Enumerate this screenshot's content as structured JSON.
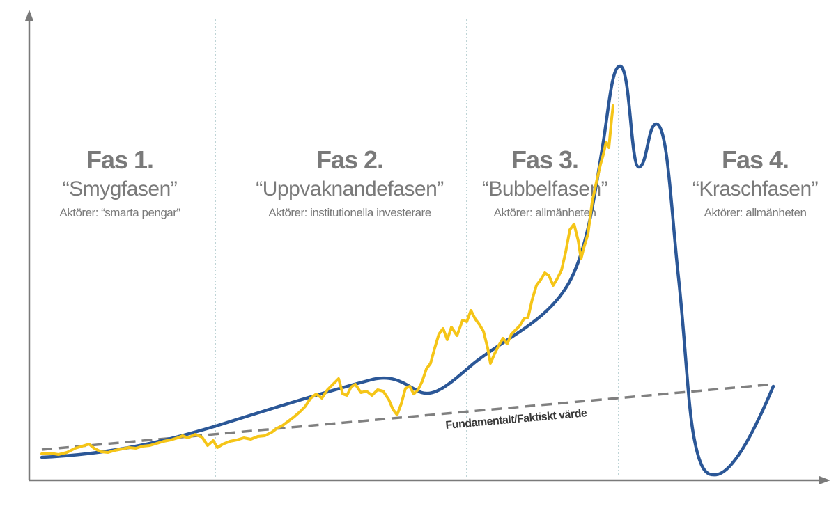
{
  "phases": [
    {
      "title": "Fas 1.",
      "name": "“Smygfasen”",
      "actors": "Aktörer: “smarta pengar”"
    },
    {
      "title": "Fas 2.",
      "name": "“Uppvaknandefasen”",
      "actors": "Aktörer: institutionella investerare"
    },
    {
      "title": "Fas 3.",
      "name": "“Bubbelfasen”",
      "actors": "Aktörer: allmänheten"
    },
    {
      "title": "Fas 4.",
      "name": "“Kraschfasen”",
      "actors": "Aktörer: allmänheten"
    }
  ],
  "fundamental_label": "Fundamentalt/Faktiskt värde",
  "colors": {
    "bubble_curve": "#2b5797",
    "price_line": "#f5c518",
    "fundamental_line": "#808080",
    "axis": "#7a7a7a",
    "divider": "#a9c6c9",
    "text": "#7a7a7a"
  }
}
